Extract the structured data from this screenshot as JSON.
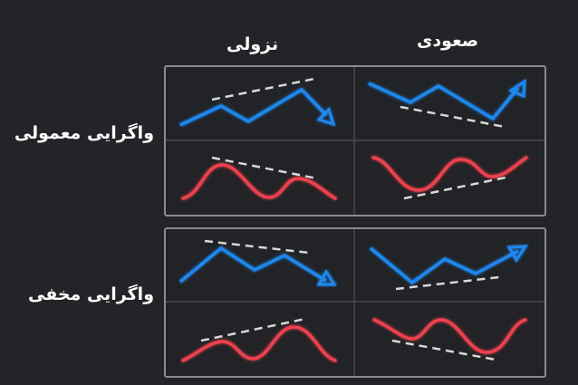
{
  "columns": {
    "bearish": "نزولی",
    "bullish": "صعودی"
  },
  "rows": {
    "regular": "واگرایی معمولی",
    "hidden": "واگرایی مخفی"
  },
  "colors": {
    "price": "#1e88f0",
    "indicator": "#f0404e",
    "trendline": "#d8d8d8",
    "background": "#232427"
  }
}
